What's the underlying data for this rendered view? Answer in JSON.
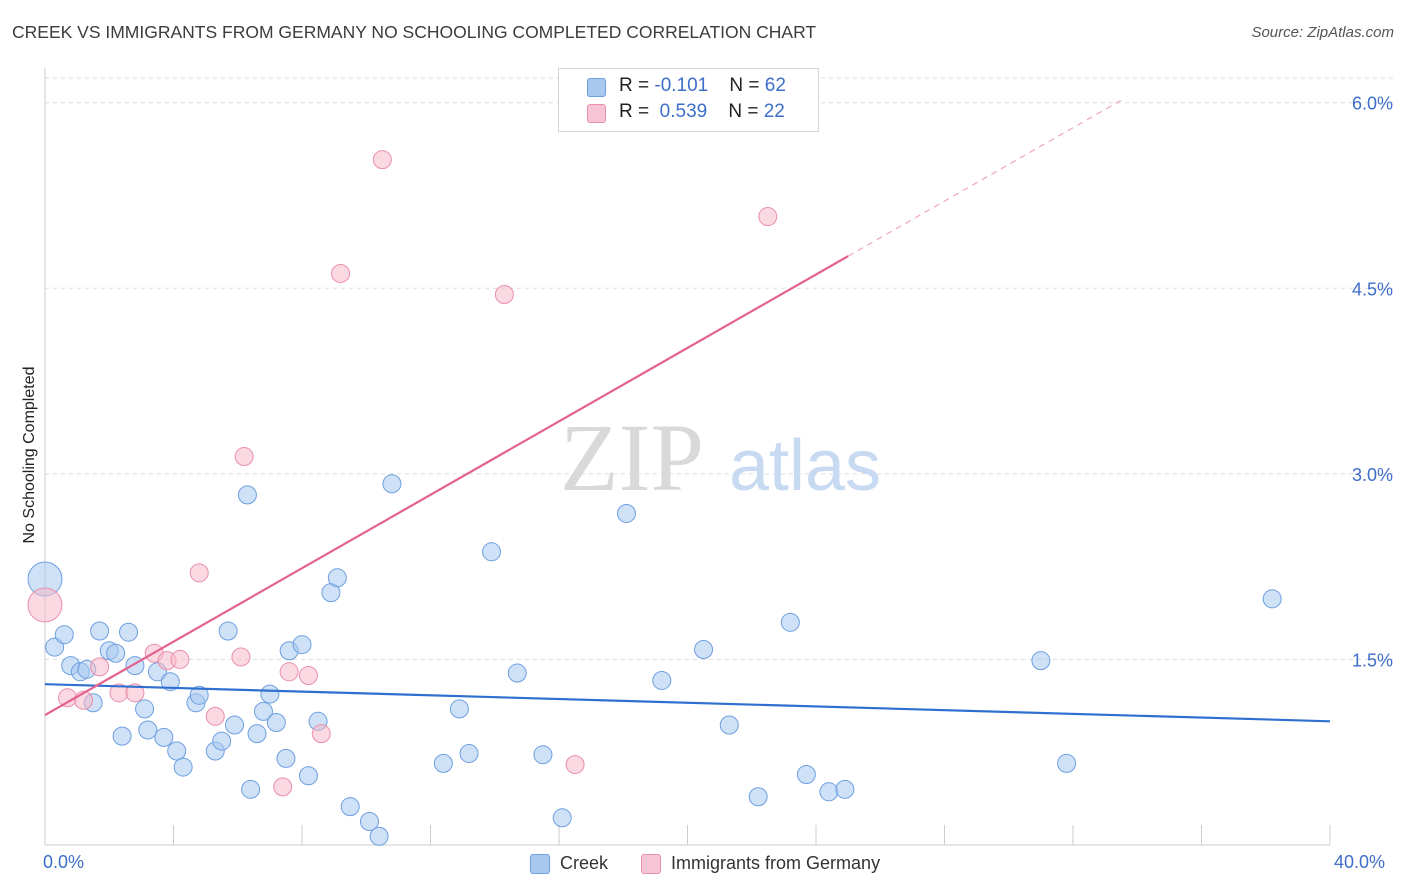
{
  "header": {
    "title": "CREEK VS IMMIGRANTS FROM GERMANY NO SCHOOLING COMPLETED CORRELATION CHART",
    "source": "Source: ZipAtlas.com"
  },
  "watermark": {
    "zip": "ZIP",
    "atlas": "atlas"
  },
  "legend": {
    "creek": {
      "r_label": "R = ",
      "r_value": "-0.101",
      "n_label": "N = ",
      "n_value": "62"
    },
    "germany": {
      "r_label": "R = ",
      "r_value": "0.539",
      "n_label": "N = ",
      "n_value": "22"
    }
  },
  "colors": {
    "creek_fill": "#a8c8f0",
    "creek_stroke": "#6d9fe0",
    "creek_line": "#2f6fcf",
    "germany_fill": "#f6b9cb",
    "germany_stroke": "#ea8fac",
    "germany_line": "#e3628e",
    "axis_text": "#3d6ec9",
    "grid": "#dddddd"
  },
  "chart_data": {
    "type": "scatter",
    "title": "CREEK VS IMMIGRANTS FROM GERMANY NO SCHOOLING COMPLETED CORRELATION CHART",
    "xlabel": "",
    "ylabel": "No Schooling Completed",
    "xlim": [
      0,
      40
    ],
    "ylim": [
      0,
      6.2
    ],
    "x_tick_labels": [
      "0.0%",
      "40.0%"
    ],
    "y_ticks": [
      1.5,
      3.0,
      4.5,
      6.0
    ],
    "y_tick_labels": [
      "1.5%",
      "3.0%",
      "4.5%",
      "6.0%"
    ],
    "grid": true,
    "legend_placement": "top-center",
    "series": [
      {
        "name": "Creek",
        "r": -0.101,
        "n": 62,
        "trend": {
          "x": [
            0,
            40
          ],
          "y": [
            1.3,
            1.0
          ]
        },
        "points": [
          {
            "x": 0.0,
            "y": 2.15,
            "large": true
          },
          {
            "x": 0.3,
            "y": 1.6
          },
          {
            "x": 0.6,
            "y": 1.7
          },
          {
            "x": 0.8,
            "y": 1.45
          },
          {
            "x": 1.1,
            "y": 1.4
          },
          {
            "x": 1.3,
            "y": 1.42
          },
          {
            "x": 1.5,
            "y": 1.15
          },
          {
            "x": 1.7,
            "y": 1.73
          },
          {
            "x": 2.0,
            "y": 1.57
          },
          {
            "x": 2.2,
            "y": 1.55
          },
          {
            "x": 2.4,
            "y": 0.88
          },
          {
            "x": 2.6,
            "y": 1.72
          },
          {
            "x": 2.8,
            "y": 1.45
          },
          {
            "x": 3.1,
            "y": 1.1
          },
          {
            "x": 3.2,
            "y": 0.93
          },
          {
            "x": 3.5,
            "y": 1.4
          },
          {
            "x": 3.7,
            "y": 0.87
          },
          {
            "x": 3.9,
            "y": 1.32
          },
          {
            "x": 4.1,
            "y": 0.76
          },
          {
            "x": 4.3,
            "y": 0.63
          },
          {
            "x": 4.7,
            "y": 1.15
          },
          {
            "x": 4.8,
            "y": 1.21
          },
          {
            "x": 5.3,
            "y": 0.76
          },
          {
            "x": 5.5,
            "y": 0.84
          },
          {
            "x": 5.7,
            "y": 1.73
          },
          {
            "x": 5.9,
            "y": 0.97
          },
          {
            "x": 6.3,
            "y": 2.83
          },
          {
            "x": 6.4,
            "y": 0.45
          },
          {
            "x": 6.6,
            "y": 0.9
          },
          {
            "x": 6.8,
            "y": 1.08
          },
          {
            "x": 7.0,
            "y": 1.22
          },
          {
            "x": 7.2,
            "y": 0.99
          },
          {
            "x": 7.5,
            "y": 0.7
          },
          {
            "x": 7.6,
            "y": 1.57
          },
          {
            "x": 8.0,
            "y": 1.62
          },
          {
            "x": 8.2,
            "y": 0.56
          },
          {
            "x": 8.5,
            "y": 1.0
          },
          {
            "x": 8.9,
            "y": 2.04
          },
          {
            "x": 9.1,
            "y": 2.16
          },
          {
            "x": 9.5,
            "y": 0.31
          },
          {
            "x": 10.1,
            "y": 0.19
          },
          {
            "x": 10.4,
            "y": 0.07
          },
          {
            "x": 10.8,
            "y": 2.92
          },
          {
            "x": 12.4,
            "y": 0.66
          },
          {
            "x": 12.9,
            "y": 1.1
          },
          {
            "x": 13.2,
            "y": 0.74
          },
          {
            "x": 13.9,
            "y": 2.37
          },
          {
            "x": 14.7,
            "y": 1.39
          },
          {
            "x": 15.5,
            "y": 0.73
          },
          {
            "x": 16.1,
            "y": 0.22
          },
          {
            "x": 18.1,
            "y": 2.68
          },
          {
            "x": 19.2,
            "y": 1.33
          },
          {
            "x": 20.5,
            "y": 1.58
          },
          {
            "x": 21.3,
            "y": 0.97
          },
          {
            "x": 22.2,
            "y": 0.39
          },
          {
            "x": 23.2,
            "y": 1.8
          },
          {
            "x": 23.7,
            "y": 0.57
          },
          {
            "x": 24.4,
            "y": 0.43
          },
          {
            "x": 24.9,
            "y": 0.45
          },
          {
            "x": 31.0,
            "y": 1.49
          },
          {
            "x": 31.8,
            "y": 0.66
          },
          {
            "x": 38.2,
            "y": 1.99
          }
        ]
      },
      {
        "name": "Immigrants from Germany",
        "r": 0.539,
        "n": 22,
        "trend": {
          "x": [
            0,
            25
          ],
          "y": [
            1.05,
            4.76
          ]
        },
        "trend_dashed": {
          "x": [
            25,
            33.5
          ],
          "y": [
            4.76,
            6.02
          ]
        },
        "points": [
          {
            "x": 0.0,
            "y": 1.94,
            "large": true
          },
          {
            "x": 0.7,
            "y": 1.19
          },
          {
            "x": 1.2,
            "y": 1.17
          },
          {
            "x": 1.7,
            "y": 1.44
          },
          {
            "x": 2.3,
            "y": 1.23
          },
          {
            "x": 2.8,
            "y": 1.23
          },
          {
            "x": 3.4,
            "y": 1.55
          },
          {
            "x": 3.8,
            "y": 1.49
          },
          {
            "x": 4.2,
            "y": 1.5
          },
          {
            "x": 4.8,
            "y": 2.2
          },
          {
            "x": 5.3,
            "y": 1.04
          },
          {
            "x": 6.1,
            "y": 1.52
          },
          {
            "x": 6.2,
            "y": 3.14
          },
          {
            "x": 7.4,
            "y": 0.47
          },
          {
            "x": 7.6,
            "y": 1.4
          },
          {
            "x": 8.2,
            "y": 1.37
          },
          {
            "x": 8.6,
            "y": 0.9
          },
          {
            "x": 9.2,
            "y": 4.62
          },
          {
            "x": 10.5,
            "y": 5.54
          },
          {
            "x": 14.3,
            "y": 4.45
          },
          {
            "x": 16.5,
            "y": 0.65
          },
          {
            "x": 22.5,
            "y": 5.08
          }
        ]
      }
    ]
  }
}
